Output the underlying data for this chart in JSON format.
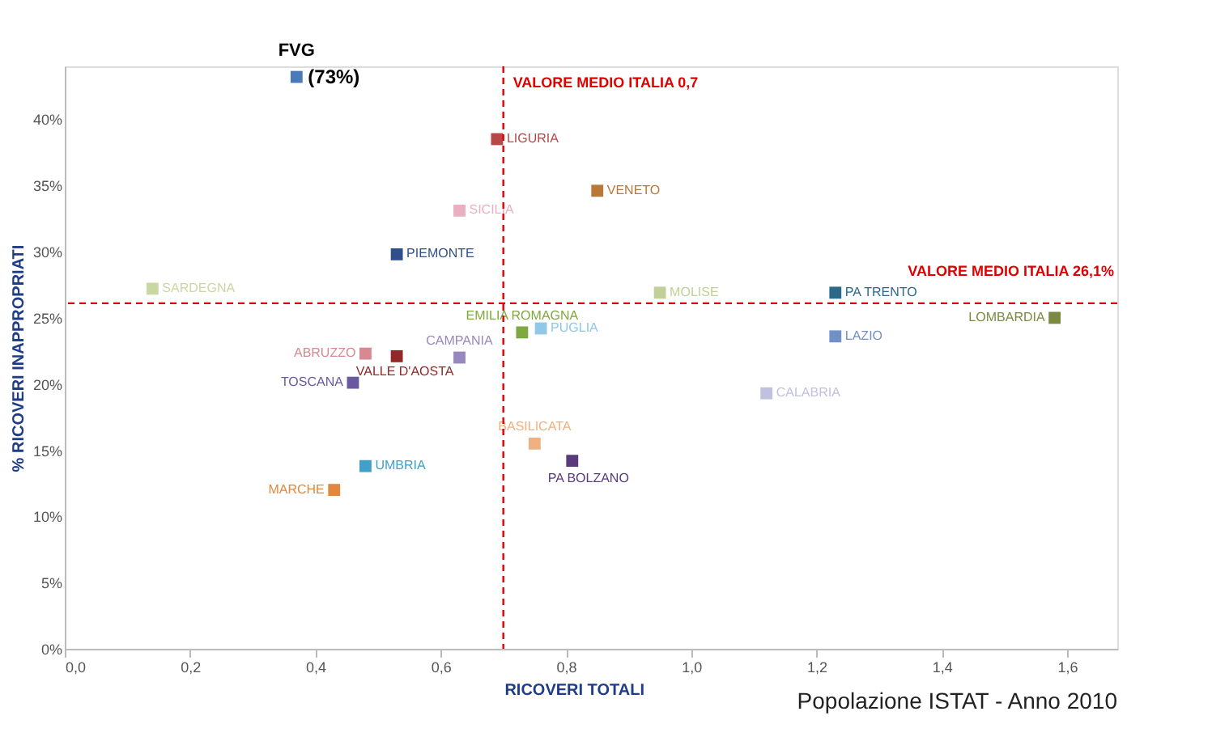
{
  "chart_data": {
    "type": "scatter",
    "marker": "square",
    "grid": false,
    "xlabel": "RICOVERI TOTALI",
    "ylabel": "% RICOVERI INAPPROPRIATI",
    "xlim": [
      0,
      1.68
    ],
    "ylim": [
      0,
      44
    ],
    "xticks": [
      {
        "value": 0,
        "label": "0,0"
      },
      {
        "value": 0.2,
        "label": "0,2"
      },
      {
        "value": 0.4,
        "label": "0,4"
      },
      {
        "value": 0.6,
        "label": "0,6"
      },
      {
        "value": 0.8,
        "label": "0,8"
      },
      {
        "value": 1.0,
        "label": "1,0"
      },
      {
        "value": 1.2,
        "label": "1,2"
      },
      {
        "value": 1.4,
        "label": "1,4"
      },
      {
        "value": 1.6,
        "label": "1,6"
      }
    ],
    "yticks": [
      {
        "value": 0,
        "label": "0%"
      },
      {
        "value": 5,
        "label": "5%"
      },
      {
        "value": 10,
        "label": "10%"
      },
      {
        "value": 15,
        "label": "15%"
      },
      {
        "value": 20,
        "label": "20%"
      },
      {
        "value": 25,
        "label": "25%"
      },
      {
        "value": 30,
        "label": "30%"
      },
      {
        "value": 35,
        "label": "35%"
      },
      {
        "value": 40,
        "label": "40%"
      }
    ],
    "series": [
      {
        "name": "FVG",
        "color": "#4a7ab8",
        "x": [
          0.37
        ],
        "values": [
          43.2
        ]
      },
      {
        "name": "LIGURIA",
        "color": "#b84848",
        "x": [
          0.69
        ],
        "values": [
          38.5
        ]
      },
      {
        "name": "SICILIA",
        "color": "#e8b0c0",
        "x": [
          0.63
        ],
        "values": [
          33.1
        ]
      },
      {
        "name": "VENETO",
        "color": "#b87838",
        "x": [
          0.85
        ],
        "values": [
          34.6
        ]
      },
      {
        "name": "PIEMONTE",
        "color": "#2f4f8a",
        "x": [
          0.53
        ],
        "values": [
          29.8
        ]
      },
      {
        "name": "SARDEGNA",
        "color": "#c8d8a0",
        "x": [
          0.14
        ],
        "values": [
          27.2
        ]
      },
      {
        "name": "MOLISE",
        "color": "#c0d098",
        "x": [
          0.95
        ],
        "values": [
          26.9
        ]
      },
      {
        "name": "PA TRENTO",
        "color": "#2a6a88",
        "x": [
          1.23
        ],
        "values": [
          26.9
        ]
      },
      {
        "name": "LOMBARDIA",
        "color": "#7a8a40",
        "x": [
          1.58
        ],
        "values": [
          25.0
        ]
      },
      {
        "name": "EMILIA ROMAGNA",
        "color": "#80a840",
        "x": [
          0.73
        ],
        "values": [
          23.9
        ]
      },
      {
        "name": "PUGLIA",
        "color": "#90c8e8",
        "x": [
          0.76
        ],
        "values": [
          24.2
        ]
      },
      {
        "name": "LAZIO",
        "color": "#7090c8",
        "x": [
          1.23
        ],
        "values": [
          23.6
        ]
      },
      {
        "name": "ABRUZZO",
        "color": "#d88890",
        "x": [
          0.48
        ],
        "values": [
          22.3
        ]
      },
      {
        "name": "VALLE D'AOSTA",
        "color": "#902828",
        "x": [
          0.53
        ],
        "values": [
          22.1
        ]
      },
      {
        "name": "CAMPANIA",
        "color": "#9888c0",
        "x": [
          0.63
        ],
        "values": [
          22.0
        ]
      },
      {
        "name": "TOSCANA",
        "color": "#6a58a0",
        "x": [
          0.46
        ],
        "values": [
          20.1
        ]
      },
      {
        "name": "CALABRIA",
        "color": "#c0c0e0",
        "x": [
          1.12
        ],
        "values": [
          19.3
        ]
      },
      {
        "name": "BASILICATA",
        "color": "#f0b080",
        "x": [
          0.75
        ],
        "values": [
          15.5
        ]
      },
      {
        "name": "PA BOLZANO",
        "color": "#5a3a7a",
        "x": [
          0.81
        ],
        "values": [
          14.2
        ]
      },
      {
        "name": "UMBRIA",
        "color": "#40a0c8",
        "x": [
          0.48
        ],
        "values": [
          13.8
        ]
      },
      {
        "name": "MARCHE",
        "color": "#e08840",
        "x": [
          0.43
        ],
        "values": [
          12.0
        ]
      }
    ],
    "ref_lines": [
      {
        "axis": "x",
        "value": 0.7,
        "label": "VALORE MEDIO ITALIA  0,7",
        "color": "#e00000",
        "line_style": "dashed"
      },
      {
        "axis": "y",
        "value": 26.1,
        "label": "VALORE MEDIO ITALIA  26,1%",
        "color": "#e00000",
        "line_style": "dashed"
      }
    ],
    "annotations": [
      {
        "text": "(73%)",
        "x": 0.37,
        "y": 43.2
      },
      "Popolazione ISTAT - Anno 2010"
    ]
  }
}
